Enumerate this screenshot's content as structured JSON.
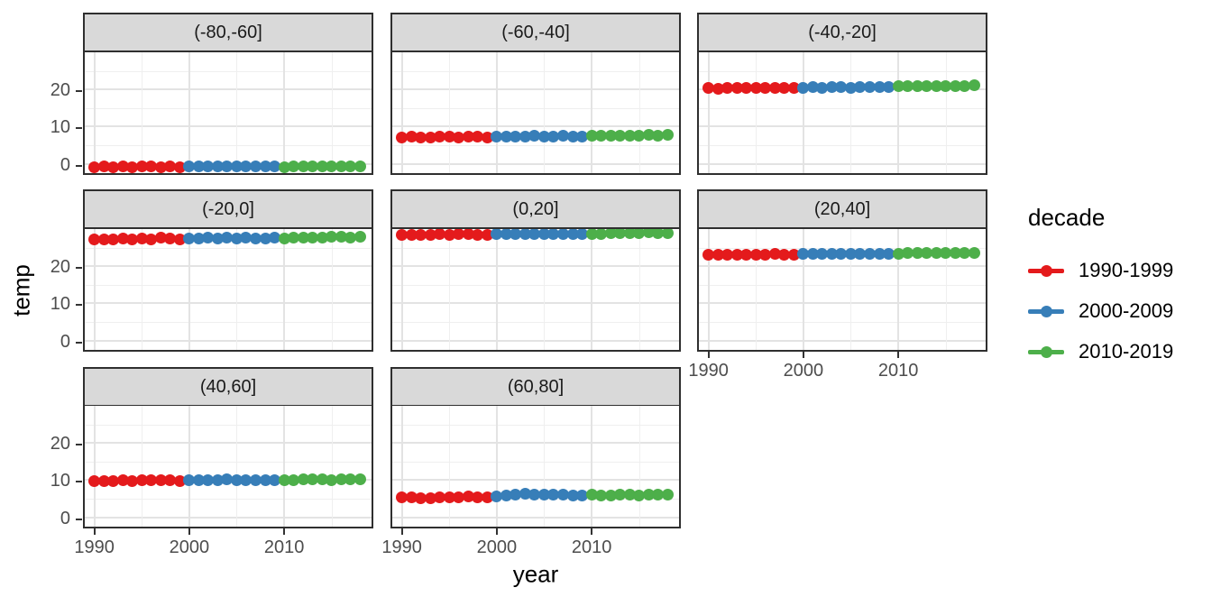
{
  "chart_data": {
    "type": "scatter",
    "title": "",
    "xlabel": "year",
    "ylabel": "temp",
    "legend_title": "decade",
    "legend_position": "right",
    "grid": true,
    "x_ticks": [
      1990,
      2000,
      2010
    ],
    "x_minor": [
      1995,
      2005,
      2015
    ],
    "y_ticks": [
      0,
      10,
      20
    ],
    "y_minor": [
      5,
      15,
      25
    ],
    "xlim": [
      1988.8,
      2019.4
    ],
    "ylim": [
      -2.5,
      30.5
    ],
    "x": [
      1990,
      1991,
      1992,
      1993,
      1994,
      1995,
      1996,
      1997,
      1998,
      1999,
      2000,
      2001,
      2002,
      2003,
      2004,
      2005,
      2006,
      2007,
      2008,
      2009,
      2010,
      2011,
      2012,
      2013,
      2014,
      2015,
      2016,
      2017,
      2018
    ],
    "legend": [
      {
        "label": "1990-1999",
        "color": "#e41a1c",
        "year_start": 1990,
        "year_end": 1999
      },
      {
        "label": "2000-2009",
        "color": "#377eb8",
        "year_start": 2000,
        "year_end": 2009
      },
      {
        "label": "2010-2019",
        "color": "#4daf4a",
        "year_start": 2010,
        "year_end": 2019
      }
    ],
    "facets": [
      {
        "label": "(-80,-60]",
        "values": [
          -0.9,
          -0.8,
          -1.0,
          -0.7,
          -0.9,
          -0.8,
          -0.7,
          -0.9,
          -0.8,
          -0.9,
          -0.8,
          -0.7,
          -0.8,
          -0.6,
          -0.8,
          -0.7,
          -0.6,
          -0.8,
          -0.7,
          -0.8,
          -0.9,
          -0.7,
          -0.8,
          -0.6,
          -0.7,
          -0.8,
          -0.6,
          -0.7,
          -0.6
        ]
      },
      {
        "label": "(-60,-40]",
        "values": [
          7.2,
          7.3,
          7.2,
          7.2,
          7.3,
          7.3,
          7.2,
          7.3,
          7.3,
          7.2,
          7.4,
          7.4,
          7.3,
          7.4,
          7.5,
          7.4,
          7.4,
          7.5,
          7.4,
          7.4,
          7.5,
          7.5,
          7.6,
          7.5,
          7.6,
          7.6,
          7.7,
          7.6,
          7.7
        ]
      },
      {
        "label": "(-40,-20]",
        "values": [
          20.4,
          20.3,
          20.4,
          20.4,
          20.5,
          20.4,
          20.5,
          20.4,
          20.5,
          20.5,
          20.5,
          20.6,
          20.5,
          20.6,
          20.6,
          20.5,
          20.6,
          20.6,
          20.7,
          20.6,
          20.8,
          20.8,
          20.9,
          20.9,
          21.0,
          20.9,
          21.0,
          21.0,
          21.1
        ]
      },
      {
        "label": "(-20,0]",
        "values": [
          27.3,
          27.2,
          27.3,
          27.4,
          27.3,
          27.4,
          27.3,
          27.6,
          27.5,
          27.3,
          27.4,
          27.5,
          27.6,
          27.5,
          27.6,
          27.5,
          27.6,
          27.4,
          27.5,
          27.6,
          27.5,
          27.6,
          27.6,
          27.7,
          27.8,
          27.9,
          28.0,
          27.8,
          27.9
        ]
      },
      {
        "label": "(0,20]",
        "values": [
          28.5,
          28.5,
          28.4,
          28.5,
          28.6,
          28.5,
          28.6,
          28.6,
          28.5,
          28.4,
          28.6,
          28.7,
          28.7,
          28.8,
          28.7,
          28.8,
          28.8,
          28.7,
          28.7,
          28.6,
          28.8,
          28.8,
          28.9,
          28.9,
          29.0,
          29.0,
          29.1,
          29.0,
          29.0
        ]
      },
      {
        "label": "(20,40]",
        "values": [
          23.1,
          23.1,
          23.0,
          23.2,
          23.1,
          23.2,
          23.2,
          23.3,
          23.2,
          23.2,
          23.3,
          23.3,
          23.4,
          23.3,
          23.4,
          23.3,
          23.4,
          23.4,
          23.3,
          23.4,
          23.4,
          23.5,
          23.5,
          23.6,
          23.5,
          23.6,
          23.6,
          23.6,
          23.7
        ]
      },
      {
        "label": "(40,60]",
        "values": [
          9.8,
          9.7,
          9.8,
          9.9,
          9.8,
          9.9,
          9.9,
          10.0,
          9.9,
          9.8,
          9.9,
          10.0,
          10.0,
          10.1,
          10.2,
          10.1,
          10.0,
          10.0,
          10.1,
          10.0,
          10.0,
          10.1,
          10.2,
          10.3,
          10.2,
          10.1,
          10.2,
          10.2,
          10.2
        ]
      },
      {
        "label": "(60,80]",
        "values": [
          5.3,
          5.4,
          5.2,
          5.2,
          5.3,
          5.4,
          5.5,
          5.6,
          5.5,
          5.4,
          5.6,
          5.8,
          6.0,
          6.3,
          6.2,
          6.1,
          6.0,
          6.0,
          5.9,
          5.9,
          6.1,
          5.9,
          5.8,
          6.0,
          6.2,
          5.9,
          6.1,
          6.1,
          6.0
        ]
      }
    ]
  },
  "style": {
    "strip_bg": "#d9d9d9",
    "panel_border": "#2f2f2f",
    "grid_major": "#e3e3e3",
    "grid_minor": "#efefef",
    "tick_color": "#333333",
    "tick_label_color": "#4d4d4d",
    "background": "#ffffff"
  }
}
